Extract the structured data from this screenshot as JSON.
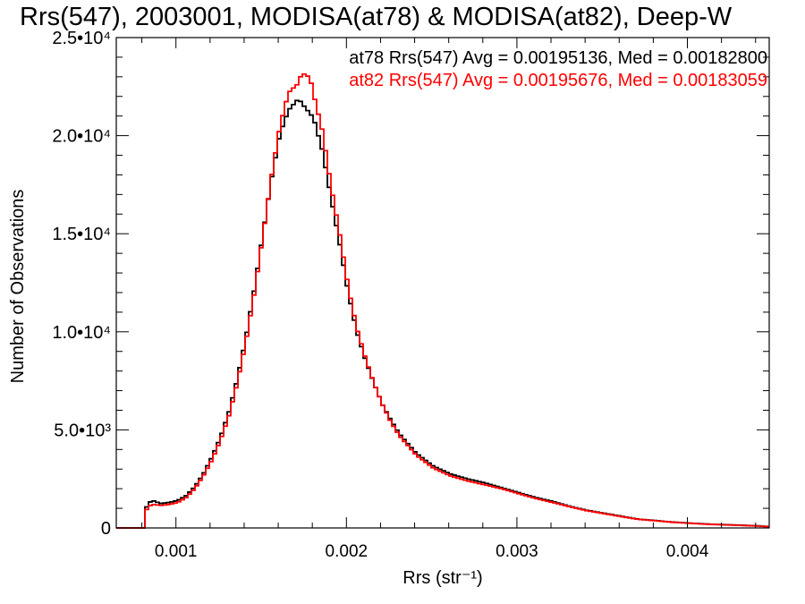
{
  "chart_data": {
    "type": "line",
    "title": "Rrs(547), 2003001, MODISA(at78) & MODISA(at82), Deep-W",
    "xlabel": "Rrs (str⁻¹)",
    "ylabel": "Number of Observations",
    "xlim": [
      0.00065,
      0.00448
    ],
    "ylim": [
      0,
      25000
    ],
    "x_ticks": [
      {
        "value": 0.001,
        "label": "0.001"
      },
      {
        "value": 0.002,
        "label": "0.002"
      },
      {
        "value": 0.003,
        "label": "0.003"
      },
      {
        "value": 0.004,
        "label": "0.004"
      }
    ],
    "y_ticks": [
      {
        "value": 0,
        "label": "0"
      },
      {
        "value": 5000,
        "label": "5.0•10³"
      },
      {
        "value": 10000,
        "label": "1.0•10⁴"
      },
      {
        "value": 15000,
        "label": "1.5•10⁴"
      },
      {
        "value": 20000,
        "label": "2.0•10⁴"
      },
      {
        "value": 25000,
        "label": "2.5•10⁴"
      }
    ],
    "legend_placement": "top-right",
    "grid": false,
    "series": [
      {
        "name": "at78",
        "color": "#000000",
        "legend_text": "at78 Rrs(547) Avg = 0.00195136, Med = 0.00182800",
        "x": [
          0.00065,
          0.0008,
          0.00082,
          0.00085,
          0.0009,
          0.00095,
          0.001,
          0.00105,
          0.0011,
          0.00115,
          0.0012,
          0.00125,
          0.0013,
          0.00135,
          0.0014,
          0.00145,
          0.0015,
          0.00155,
          0.0016,
          0.00165,
          0.0017,
          0.00172,
          0.00175,
          0.00178,
          0.0018,
          0.00185,
          0.0019,
          0.00195,
          0.002,
          0.00205,
          0.0021,
          0.00215,
          0.0022,
          0.00225,
          0.0023,
          0.0024,
          0.0025,
          0.0026,
          0.0027,
          0.0028,
          0.0029,
          0.003,
          0.0031,
          0.0032,
          0.0033,
          0.0034,
          0.0035,
          0.0036,
          0.0037,
          0.0038,
          0.0039,
          0.004,
          0.0041,
          0.0042,
          0.0043,
          0.0044,
          0.00448
        ],
        "y": [
          0,
          0,
          1200,
          1400,
          1250,
          1300,
          1400,
          1650,
          2100,
          2750,
          3600,
          4600,
          5900,
          7600,
          9700,
          12200,
          15000,
          17800,
          20100,
          21300,
          21800,
          21750,
          21400,
          21100,
          20800,
          19200,
          16800,
          14500,
          12000,
          10000,
          8600,
          7400,
          6300,
          5500,
          4800,
          3800,
          3150,
          2750,
          2500,
          2300,
          2050,
          1800,
          1550,
          1350,
          1100,
          900,
          750,
          600,
          450,
          380,
          300,
          250,
          200,
          170,
          140,
          110,
          60
        ]
      },
      {
        "name": "at82",
        "color": "#ff0000",
        "legend_text": "at82 Rrs(547) Avg = 0.00195676, Med = 0.00183059",
        "x": [
          0.00065,
          0.0008,
          0.00082,
          0.00085,
          0.0009,
          0.00095,
          0.001,
          0.00105,
          0.0011,
          0.00115,
          0.0012,
          0.00125,
          0.0013,
          0.00135,
          0.0014,
          0.00145,
          0.0015,
          0.00155,
          0.0016,
          0.00165,
          0.0017,
          0.00172,
          0.00175,
          0.00178,
          0.0018,
          0.00185,
          0.0019,
          0.00195,
          0.002,
          0.00205,
          0.0021,
          0.00215,
          0.0022,
          0.00225,
          0.0023,
          0.0024,
          0.0025,
          0.0026,
          0.0027,
          0.0028,
          0.0029,
          0.003,
          0.0031,
          0.0032,
          0.0033,
          0.0034,
          0.0035,
          0.0036,
          0.0037,
          0.0038,
          0.0039,
          0.004,
          0.0041,
          0.0042,
          0.0043,
          0.0044,
          0.00448
        ],
        "y": [
          0,
          0,
          1050,
          1200,
          1150,
          1200,
          1300,
          1550,
          2000,
          2650,
          3450,
          4450,
          5700,
          7400,
          9500,
          12000,
          14900,
          17900,
          20500,
          22200,
          22600,
          23000,
          23200,
          22800,
          22000,
          20200,
          17400,
          15000,
          12300,
          10200,
          8700,
          7400,
          6300,
          5400,
          4700,
          3700,
          3050,
          2650,
          2400,
          2200,
          2000,
          1750,
          1500,
          1300,
          1080,
          880,
          730,
          580,
          440,
          370,
          290,
          240,
          190,
          160,
          130,
          100,
          50
        ]
      }
    ]
  }
}
